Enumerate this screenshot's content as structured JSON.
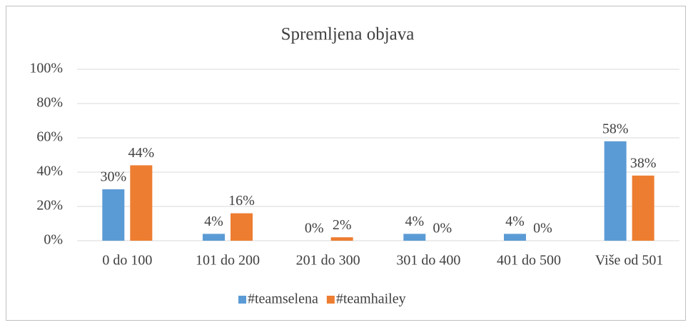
{
  "chart_data": {
    "type": "bar",
    "title": "Spremljena objava",
    "categories": [
      "0 do 100",
      "101 do 200",
      "201 do 300",
      "301 do 400",
      "401 do 500",
      "Više od 501"
    ],
    "series": [
      {
        "name": "#teamselena",
        "color": "#5b9bd5",
        "values": [
          30,
          4,
          0,
          4,
          4,
          58
        ],
        "value_labels": [
          "30%",
          "4%",
          "0%",
          "4%",
          "4%",
          "58%"
        ]
      },
      {
        "name": "#teamhailey",
        "color": "#ed7d31",
        "values": [
          44,
          16,
          2,
          0,
          0,
          38
        ],
        "value_labels": [
          "44%",
          "16%",
          "2%",
          "0%",
          "0%",
          "38%"
        ]
      }
    ],
    "ylim": [
      0,
      100
    ],
    "yticks": [
      {
        "value": 0,
        "label": "0%"
      },
      {
        "value": 20,
        "label": "20%"
      },
      {
        "value": 40,
        "label": "40%"
      },
      {
        "value": 60,
        "label": "60%"
      },
      {
        "value": 80,
        "label": "80%"
      },
      {
        "value": 100,
        "label": "100%"
      }
    ],
    "grid": true,
    "legend": "bottom"
  }
}
